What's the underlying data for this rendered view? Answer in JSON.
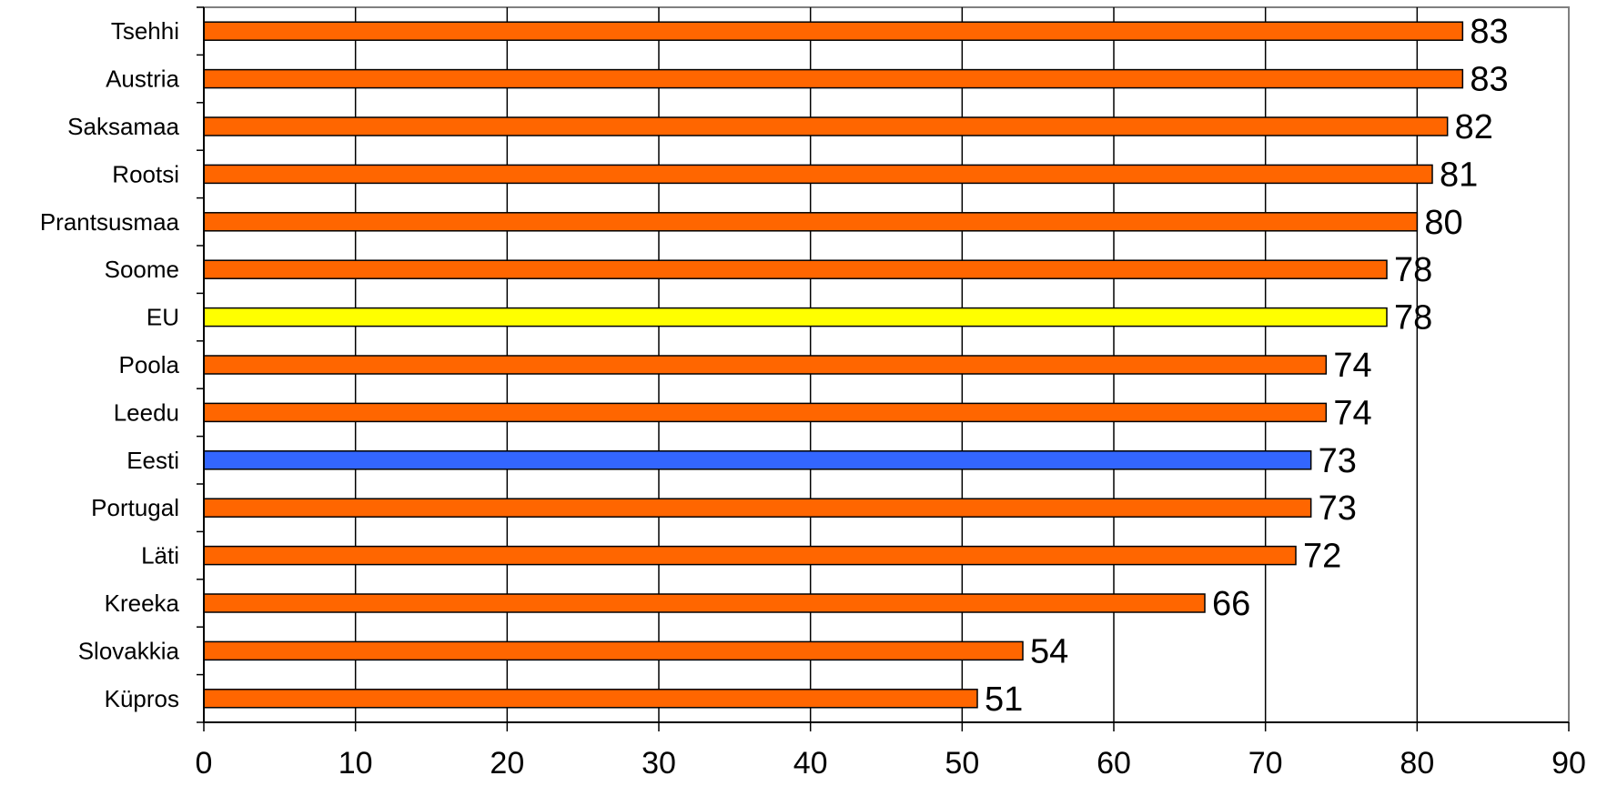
{
  "chart_data": {
    "type": "bar",
    "orientation": "horizontal",
    "categories": [
      "Tsehhi",
      "Austria",
      "Saksamaa",
      "Rootsi",
      "Prantsusmaa",
      "Soome",
      "EU",
      "Poola",
      "Leedu",
      "Eesti",
      "Portugal",
      "Läti",
      "Kreeka",
      "Slovakkia",
      "Küpros"
    ],
    "values": [
      83,
      83,
      82,
      81,
      80,
      78,
      78,
      74,
      74,
      73,
      73,
      72,
      66,
      54,
      51
    ],
    "bar_colors": [
      "#FF6600",
      "#FF6600",
      "#FF6600",
      "#FF6600",
      "#FF6600",
      "#FF6600",
      "#FFFF00",
      "#FF6600",
      "#FF6600",
      "#3366FF",
      "#FF6600",
      "#FF6600",
      "#FF6600",
      "#FF6600",
      "#FF6600"
    ],
    "xlim": [
      0,
      90
    ],
    "x_ticks": [
      0,
      10,
      20,
      30,
      40,
      50,
      60,
      70,
      80,
      90
    ],
    "grid": "vertical",
    "legend": "none",
    "title": "",
    "xlabel": "",
    "ylabel": ""
  }
}
